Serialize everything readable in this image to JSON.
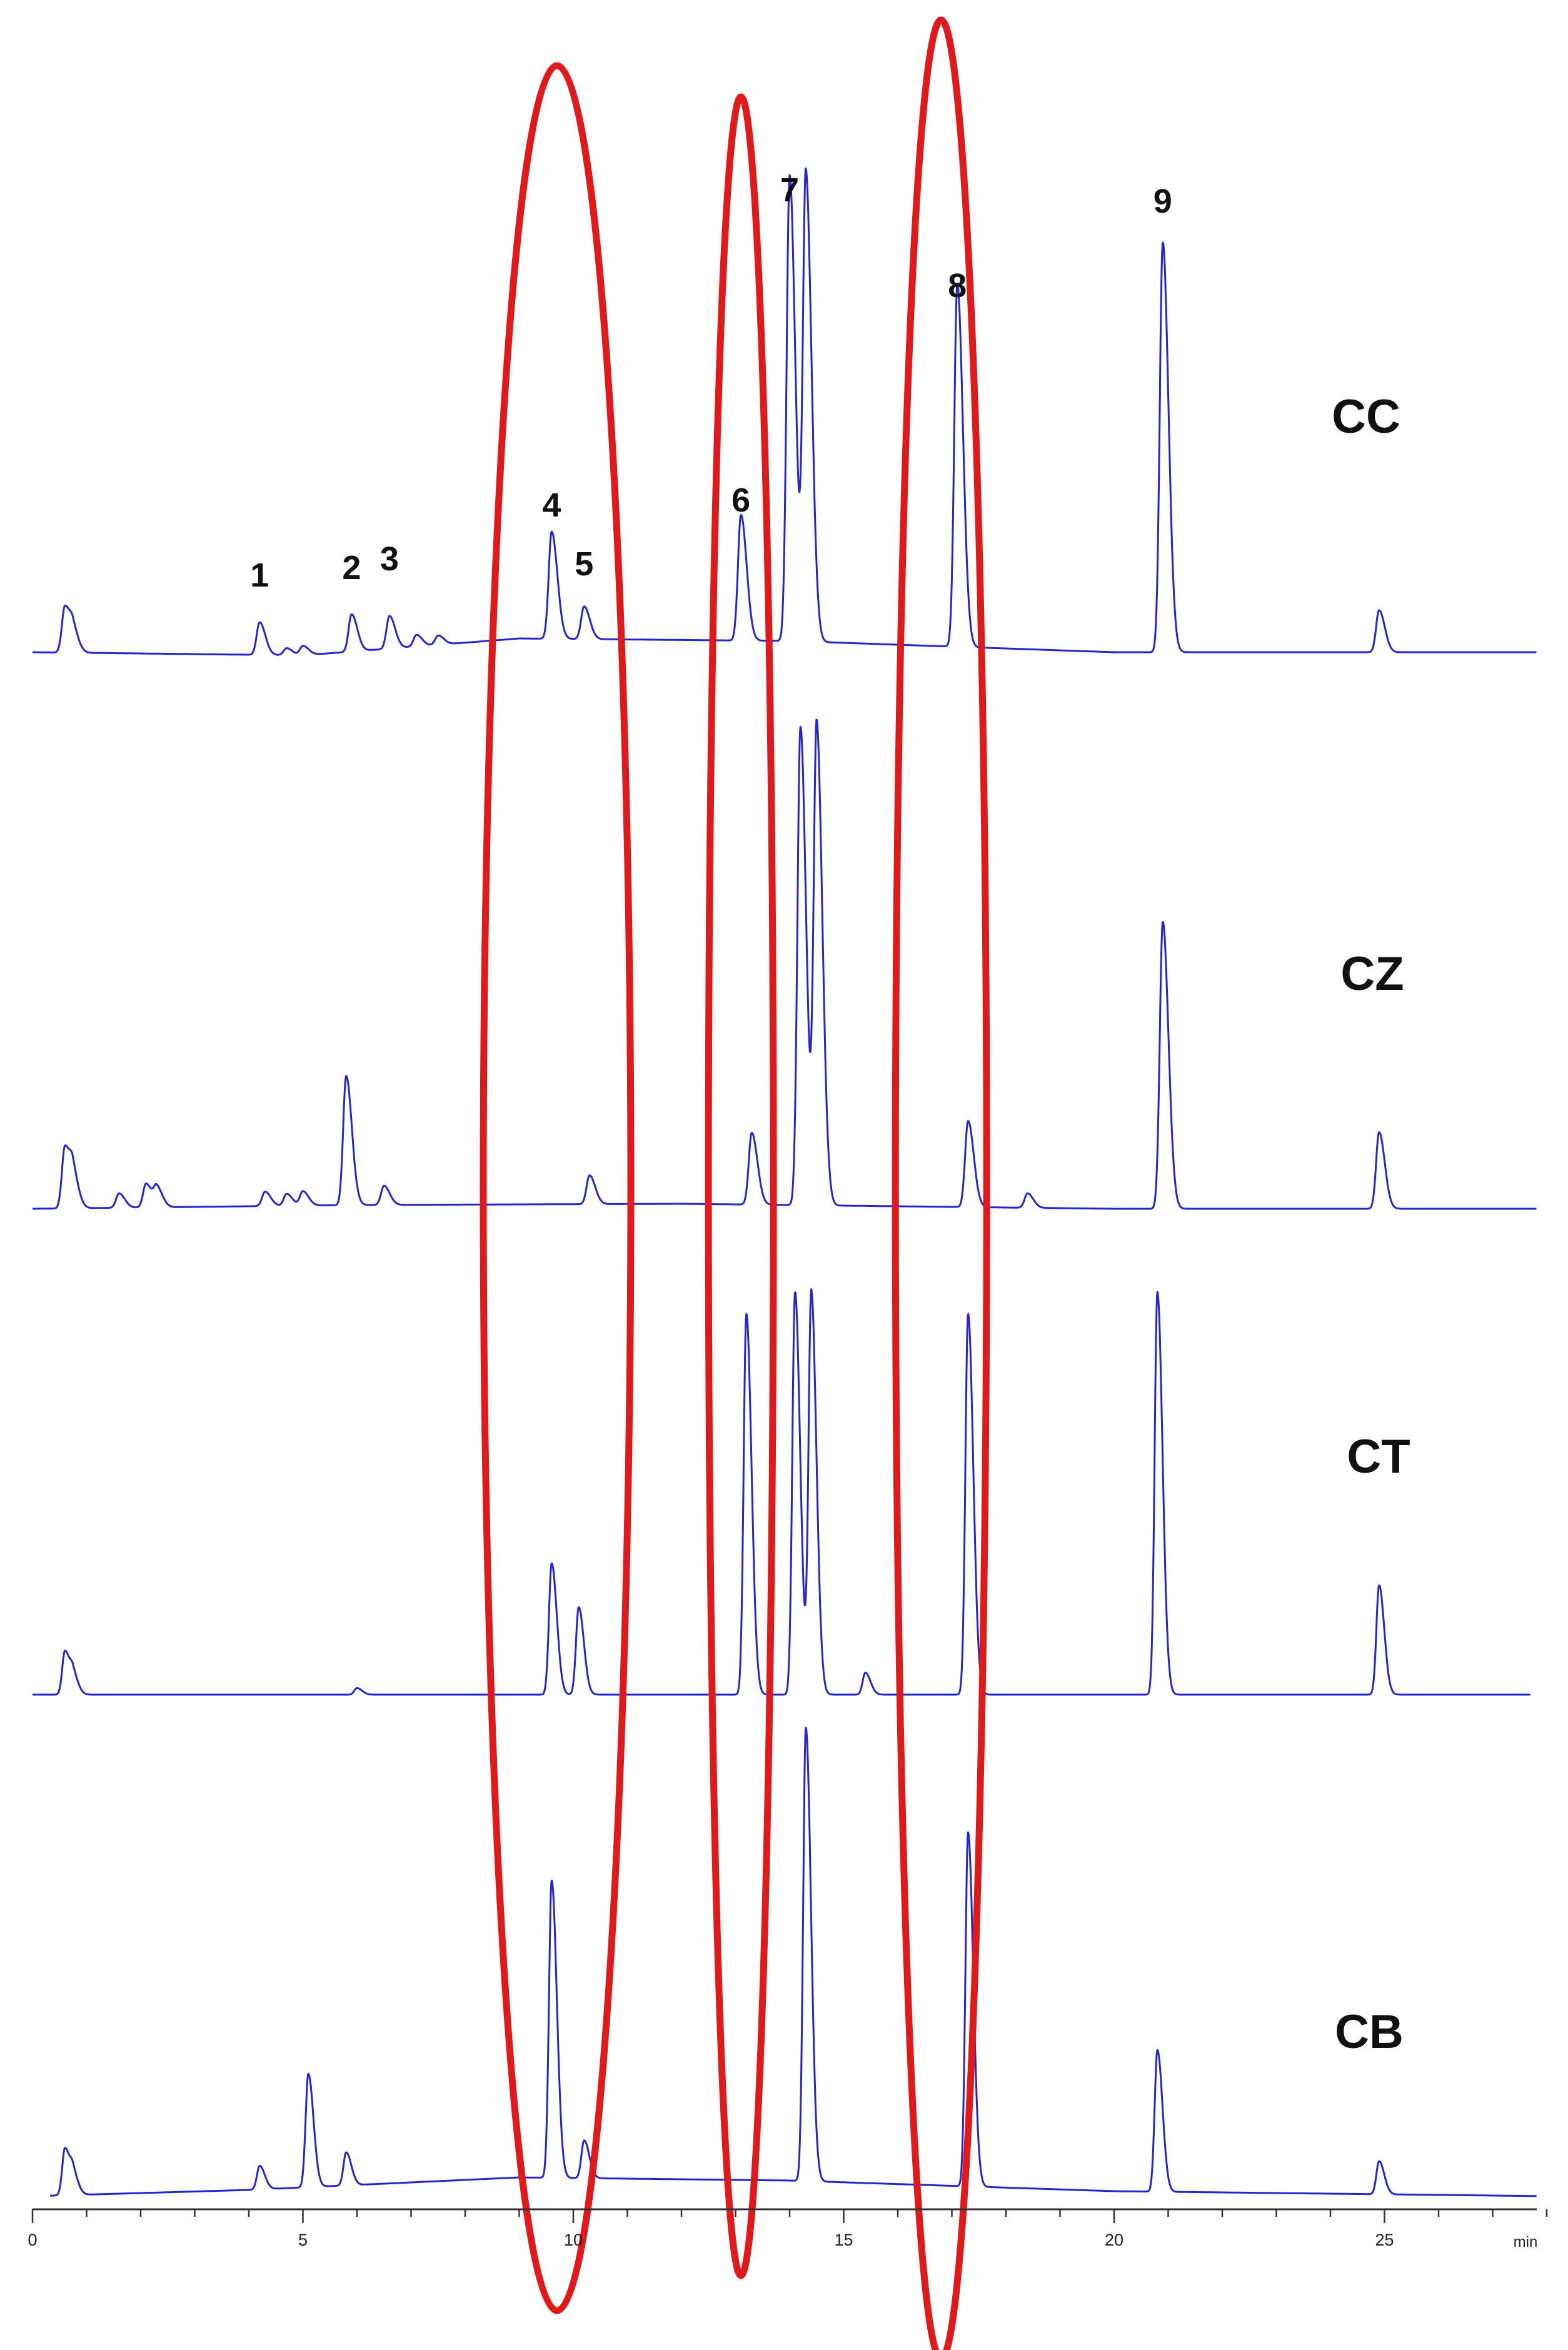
{
  "chart_data": {
    "type": "line",
    "title": "",
    "xlabel": "min",
    "ylabel": "",
    "xlim": [
      0,
      28
    ],
    "x_ticks": [
      0,
      5,
      10,
      15,
      20,
      25
    ],
    "grid": false,
    "legend": "none",
    "colors": {
      "trace": "#2626cc",
      "highlight": "#e0191b",
      "axis": "#333333"
    },
    "peak_labels": [
      {
        "label": "1",
        "x": 4.2,
        "series": "CC"
      },
      {
        "label": "2",
        "x": 5.9,
        "series": "CC"
      },
      {
        "label": "3",
        "x": 6.6,
        "series": "CC"
      },
      {
        "label": "4",
        "x": 9.6,
        "series": "CC"
      },
      {
        "label": "5",
        "x": 10.2,
        "series": "CC"
      },
      {
        "label": "6",
        "x": 13.1,
        "series": "CC"
      },
      {
        "label": "7",
        "x": 14.0,
        "series": "CC"
      },
      {
        "label": "8",
        "x": 17.1,
        "series": "CC"
      },
      {
        "label": "9",
        "x": 20.9,
        "series": "CC"
      }
    ],
    "highlight_regions": [
      {
        "x_center": 9.7
      },
      {
        "x_center": 13.1
      },
      {
        "x_center": 16.8
      }
    ],
    "series": [
      {
        "name": "CC",
        "peaks": [
          [
            0.6,
            0.1
          ],
          [
            0.75,
            0.04
          ],
          [
            4.2,
            0.07
          ],
          [
            4.7,
            0.015
          ],
          [
            5.0,
            0.02
          ],
          [
            5.9,
            0.08
          ],
          [
            6.6,
            0.07
          ],
          [
            7.1,
            0.025
          ],
          [
            7.5,
            0.02
          ],
          [
            9.6,
            0.23
          ],
          [
            10.2,
            0.07
          ],
          [
            13.1,
            0.27
          ],
          [
            14.0,
            1.0
          ],
          [
            14.3,
            1.0
          ],
          [
            17.1,
            0.78
          ],
          [
            20.9,
            0.88
          ],
          [
            24.9,
            0.09
          ]
        ]
      },
      {
        "name": "CZ",
        "peaks": [
          [
            0.6,
            0.13
          ],
          [
            0.75,
            0.06
          ],
          [
            1.6,
            0.03
          ],
          [
            2.1,
            0.05
          ],
          [
            2.3,
            0.04
          ],
          [
            4.3,
            0.03
          ],
          [
            4.7,
            0.025
          ],
          [
            5.0,
            0.03
          ],
          [
            5.8,
            0.27
          ],
          [
            6.5,
            0.04
          ],
          [
            10.3,
            0.06
          ],
          [
            13.3,
            0.15
          ],
          [
            14.2,
            1.0
          ],
          [
            14.5,
            1.0
          ],
          [
            17.3,
            0.18
          ],
          [
            18.4,
            0.03
          ],
          [
            20.9,
            0.6
          ],
          [
            24.9,
            0.16
          ]
        ]
      },
      {
        "name": "CT",
        "peaks": [
          [
            0.6,
            0.1
          ],
          [
            0.75,
            0.04
          ],
          [
            6.0,
            0.015
          ],
          [
            9.6,
            0.3
          ],
          [
            10.1,
            0.2
          ],
          [
            13.2,
            0.87
          ],
          [
            14.1,
            0.92
          ],
          [
            14.4,
            0.92
          ],
          [
            15.4,
            0.05
          ],
          [
            17.3,
            0.87
          ],
          [
            20.8,
            0.92
          ],
          [
            24.9,
            0.25
          ]
        ]
      },
      {
        "name": "CB",
        "peaks": [
          [
            0.6,
            0.1
          ],
          [
            0.75,
            0.04
          ],
          [
            4.2,
            0.05
          ],
          [
            5.1,
            0.24
          ],
          [
            5.8,
            0.07
          ],
          [
            9.6,
            0.63
          ],
          [
            10.2,
            0.08
          ],
          [
            14.3,
            0.96
          ],
          [
            17.3,
            0.75
          ],
          [
            20.8,
            0.3
          ],
          [
            24.9,
            0.07
          ]
        ]
      }
    ]
  }
}
